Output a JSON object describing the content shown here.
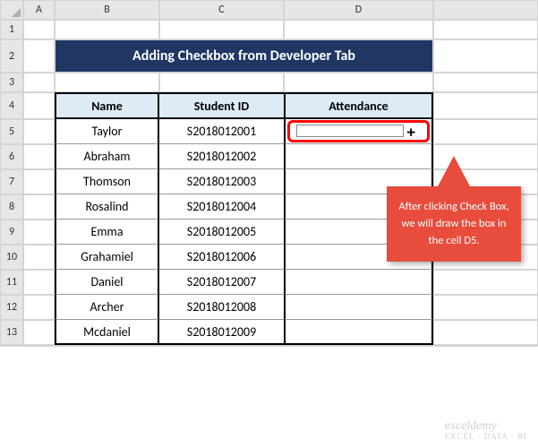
{
  "columns": [
    "A",
    "B",
    "C",
    "D"
  ],
  "rows": [
    "1",
    "2",
    "3",
    "4",
    "5",
    "6",
    "7",
    "8",
    "9",
    "10",
    "11",
    "12",
    "13"
  ],
  "title": "Adding Checkbox from Developer Tab",
  "headers": {
    "name": "Name",
    "student_id": "Student ID",
    "attendance": "Attendance"
  },
  "data": [
    {
      "name": "Taylor",
      "id": "S2018012001"
    },
    {
      "name": "Abraham",
      "id": "S2018012002"
    },
    {
      "name": "Thomson",
      "id": "S2018012003"
    },
    {
      "name": "Rosalind",
      "id": "S2018012004"
    },
    {
      "name": "Emma",
      "id": "S2018012005"
    },
    {
      "name": "Grahamiel",
      "id": "S2018012006"
    },
    {
      "name": "Daniel",
      "id": "S2018012007"
    },
    {
      "name": "Archer",
      "id": "S2018012008"
    },
    {
      "name": "Mcdaniel",
      "id": "S2018012009"
    }
  ],
  "callout_text": "After clicking Check Box, we will draw the box in the cell D5.",
  "watermark": {
    "main": "exceldemy",
    "sub": "EXCEL · DATA · BI"
  },
  "colors": {
    "title_bg": "#203764",
    "title_fg": "#ffffff",
    "header_bg": "#ddebf7",
    "callout_bg": "#e74c3c",
    "highlight_border": "#ff0000",
    "grid_header_bg": "#e6e6e6"
  }
}
